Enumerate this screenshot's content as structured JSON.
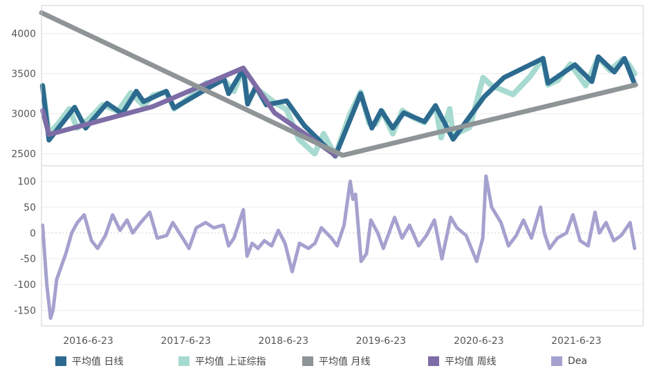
{
  "chart_data": [
    {
      "type": "line",
      "panel": "top",
      "ylim": [
        2350,
        4350
      ],
      "yticks": [
        "2500",
        "3000",
        "3500",
        "4000"
      ],
      "x_range": [
        "2015-12-31",
        "2022-02-28"
      ],
      "series": [
        {
          "name": "平均值 上证综指",
          "color": "#a7dad0",
          "x": [
            "2016-01-04",
            "2016-01-28",
            "2016-03-01",
            "2016-04-13",
            "2016-05-12",
            "2016-07-01",
            "2016-08-15",
            "2016-10-12",
            "2016-11-29",
            "2017-01-16",
            "2017-02-20",
            "2017-04-11",
            "2017-05-10",
            "2017-07-14",
            "2017-09-06",
            "2017-11-13",
            "2017-12-20",
            "2018-01-24",
            "2018-02-09",
            "2018-03-12",
            "2018-05-21",
            "2018-07-05",
            "2018-08-20",
            "2018-10-18",
            "2018-11-20",
            "2019-01-03",
            "2019-02-25",
            "2019-04-08",
            "2019-05-10",
            "2019-06-03",
            "2019-06-28",
            "2019-08-06",
            "2019-09-11",
            "2019-10-28",
            "2019-12-03",
            "2020-01-13",
            "2020-02-03",
            "2020-03-06",
            "2020-03-19",
            "2020-05-20",
            "2020-07-09",
            "2020-08-10",
            "2020-10-29",
            "2020-12-31",
            "2021-02-18",
            "2021-03-09",
            "2021-04-15",
            "2021-06-01",
            "2021-07-28",
            "2021-09-13",
            "2021-10-27",
            "2021-12-13",
            "2022-01-04",
            "2022-01-27"
          ],
          "values": [
            3350,
            2750,
            2870,
            3060,
            2820,
            2950,
            3110,
            3030,
            3260,
            3100,
            3230,
            3270,
            3060,
            3220,
            3380,
            3420,
            3280,
            3560,
            3140,
            3320,
            3140,
            3050,
            2680,
            2500,
            2750,
            2480,
            2980,
            3270,
            2880,
            2870,
            3030,
            2750,
            3040,
            2940,
            2890,
            3100,
            2700,
            3060,
            2730,
            2830,
            3450,
            3350,
            3240,
            3460,
            3690,
            3360,
            3420,
            3620,
            3350,
            3700,
            3540,
            3680,
            3620,
            3500
          ],
          "width": 8
        },
        {
          "name": "平均值 日线",
          "color": "#2c6a8f",
          "x": [
            "2016-01-04",
            "2016-01-28",
            "2016-05-03",
            "2016-06-13",
            "2016-09-01",
            "2016-10-28",
            "2016-12-20",
            "2017-01-16",
            "2017-04-11",
            "2017-05-10",
            "2017-09-20",
            "2017-11-13",
            "2017-11-30",
            "2018-01-24",
            "2018-02-09",
            "2018-03-12",
            "2018-04-20",
            "2018-07-05",
            "2018-09-10",
            "2019-01-03",
            "2019-04-08",
            "2019-05-20",
            "2019-06-24",
            "2019-08-06",
            "2019-09-16",
            "2019-12-03",
            "2020-01-13",
            "2020-03-19",
            "2020-07-13",
            "2020-09-25",
            "2021-02-18",
            "2021-03-09",
            "2021-06-18",
            "2021-08-20",
            "2021-09-13",
            "2021-11-12",
            "2021-12-20",
            "2022-01-27"
          ],
          "values": [
            3350,
            2670,
            3080,
            2820,
            3130,
            3000,
            3280,
            3150,
            3280,
            3070,
            3330,
            3430,
            3250,
            3560,
            3120,
            3340,
            3110,
            3160,
            2850,
            2470,
            3250,
            2820,
            3040,
            2820,
            3010,
            2900,
            3100,
            2680,
            3210,
            3450,
            3690,
            3380,
            3610,
            3400,
            3710,
            3520,
            3690,
            3370
          ],
          "width": 7
        },
        {
          "name": "平均值 周线",
          "color": "#7e6ca6",
          "x": [
            "2016-01-04",
            "2016-01-28",
            "2017-02-20",
            "2018-01-24",
            "2018-05-21",
            "2018-08-20",
            "2019-01-03"
          ],
          "values": [
            3040,
            2740,
            3090,
            3570,
            3010,
            2800,
            2480
          ],
          "width": 7
        },
        {
          "name": "平均值 月线",
          "color": "#8f9596",
          "x": [
            "2015-12-31",
            "2019-01-31",
            "2022-01-31"
          ],
          "values": [
            4260,
            2480,
            3360
          ],
          "width": 7
        }
      ]
    },
    {
      "type": "line",
      "panel": "bottom",
      "ylim": [
        -180,
        130
      ],
      "yticks": [
        "100",
        "50",
        "0",
        "-50",
        "-100",
        "-150"
      ],
      "x_range": [
        "2015-12-31",
        "2022-02-28"
      ],
      "xticks": [
        "2016-6-23",
        "2017-6-23",
        "2018-6-23",
        "2019-6-23",
        "2020-6-23",
        "2021-6-23"
      ],
      "series": [
        {
          "name": "Dea",
          "color": "#a5a1cf",
          "x": [
            "2016-01-04",
            "2016-01-20",
            "2016-02-03",
            "2016-02-12",
            "2016-02-26",
            "2016-03-31",
            "2016-04-22",
            "2016-05-13",
            "2016-06-08",
            "2016-07-05",
            "2016-07-28",
            "2016-08-26",
            "2016-09-22",
            "2016-10-20",
            "2016-11-15",
            "2016-12-06",
            "2017-01-05",
            "2017-02-08",
            "2017-03-08",
            "2017-04-12",
            "2017-05-05",
            "2017-06-05",
            "2017-07-05",
            "2017-08-01",
            "2017-09-05",
            "2017-10-05",
            "2017-11-10",
            "2017-11-30",
            "2017-12-20",
            "2018-01-24",
            "2018-02-07",
            "2018-02-26",
            "2018-03-20",
            "2018-04-13",
            "2018-05-10",
            "2018-06-04",
            "2018-06-29",
            "2018-07-26",
            "2018-08-22",
            "2018-09-25",
            "2018-10-19",
            "2018-11-12",
            "2018-12-20",
            "2019-01-10",
            "2019-02-05",
            "2019-02-28",
            "2019-03-10",
            "2019-03-20",
            "2019-04-10",
            "2019-04-30",
            "2019-05-16",
            "2019-06-11",
            "2019-07-02",
            "2019-08-13",
            "2019-09-10",
            "2019-10-08",
            "2019-11-11",
            "2019-12-10",
            "2020-01-09",
            "2020-02-06",
            "2020-03-10",
            "2020-04-02",
            "2020-05-07",
            "2020-06-15",
            "2020-07-08",
            "2020-07-20",
            "2020-08-10",
            "2020-09-14",
            "2020-10-12",
            "2020-11-10",
            "2020-12-07",
            "2021-01-06",
            "2021-02-09",
            "2021-02-23",
            "2021-03-15",
            "2021-04-13",
            "2021-05-17",
            "2021-06-10",
            "2021-07-07",
            "2021-08-06",
            "2021-09-01",
            "2021-09-17",
            "2021-10-12",
            "2021-11-10",
            "2021-12-08",
            "2022-01-10",
            "2022-01-27"
          ],
          "values": [
            15,
            -100,
            -165,
            -150,
            -90,
            -40,
            0,
            20,
            35,
            -15,
            -30,
            -5,
            35,
            5,
            25,
            0,
            20,
            40,
            -10,
            -5,
            20,
            -5,
            -30,
            10,
            20,
            10,
            15,
            -25,
            -10,
            45,
            -45,
            -20,
            -30,
            -15,
            -25,
            5,
            -20,
            -75,
            -20,
            -30,
            -20,
            10,
            -10,
            -25,
            15,
            100,
            65,
            75,
            -55,
            -40,
            25,
            0,
            -30,
            30,
            -10,
            15,
            -25,
            -5,
            25,
            -50,
            30,
            10,
            -5,
            -55,
            -10,
            110,
            50,
            20,
            -25,
            -5,
            25,
            -10,
            50,
            0,
            -30,
            -10,
            0,
            35,
            -15,
            -25,
            40,
            0,
            20,
            -15,
            -5,
            20,
            -30
          ],
          "width": 5
        }
      ]
    }
  ],
  "legend": [
    {
      "label": "平均值 日线",
      "color": "#2c6a8f"
    },
    {
      "label": "平均值 上证综指",
      "color": "#a7dad0"
    },
    {
      "label": "平均值 月线",
      "color": "#8f9596"
    },
    {
      "label": "平均值 周线",
      "color": "#7e6ca6"
    },
    {
      "label": "Dea",
      "color": "#a5a1cf"
    }
  ]
}
